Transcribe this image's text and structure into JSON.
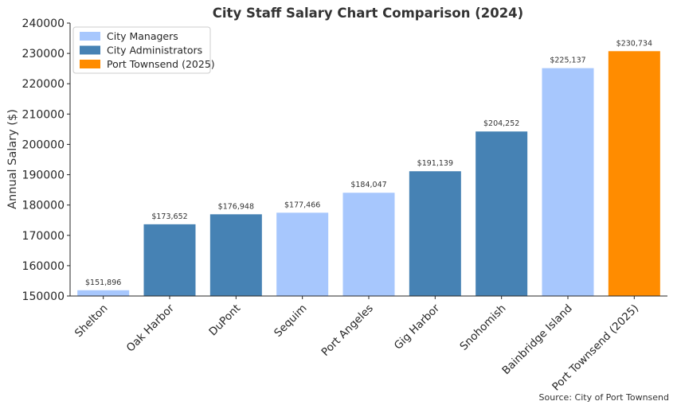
{
  "chart_data": {
    "type": "bar",
    "title": "City Staff Salary Chart Comparison (2024)",
    "xlabel": "",
    "ylabel": "Annual Salary ($)",
    "ylim": [
      150000,
      240000
    ],
    "yticks": [
      150000,
      160000,
      170000,
      180000,
      190000,
      200000,
      210000,
      220000,
      230000,
      240000
    ],
    "categories": [
      "Shelton",
      "Oak Harbor",
      "DuPont",
      "Sequim",
      "Port Angeles",
      "Gig Harbor",
      "Snohomish",
      "Bainbridge Island",
      "Port Townsend (2025)"
    ],
    "values": [
      151896,
      173652,
      176948,
      177466,
      184047,
      191139,
      204252,
      225137,
      230734
    ],
    "value_labels": [
      "$151,896",
      "$173,652",
      "$176,948",
      "$177,466",
      "$184,047",
      "$191,139",
      "$204,252",
      "$225,137",
      "$230,734"
    ],
    "groups": [
      "City Managers",
      "City Administrators",
      "City Administrators",
      "City Managers",
      "City Managers",
      "City Administrators",
      "City Administrators",
      "City Managers",
      "Port Townsend (2025)"
    ],
    "legend": [
      {
        "name": "City Managers",
        "color": "#a7c7fd"
      },
      {
        "name": "City Administrators",
        "color": "#4682b4"
      },
      {
        "name": "Port Townsend (2025)",
        "color": "#ff8c00"
      }
    ],
    "legend_position": "top-left",
    "grid": false,
    "source": "Source: City of Port Townsend"
  }
}
